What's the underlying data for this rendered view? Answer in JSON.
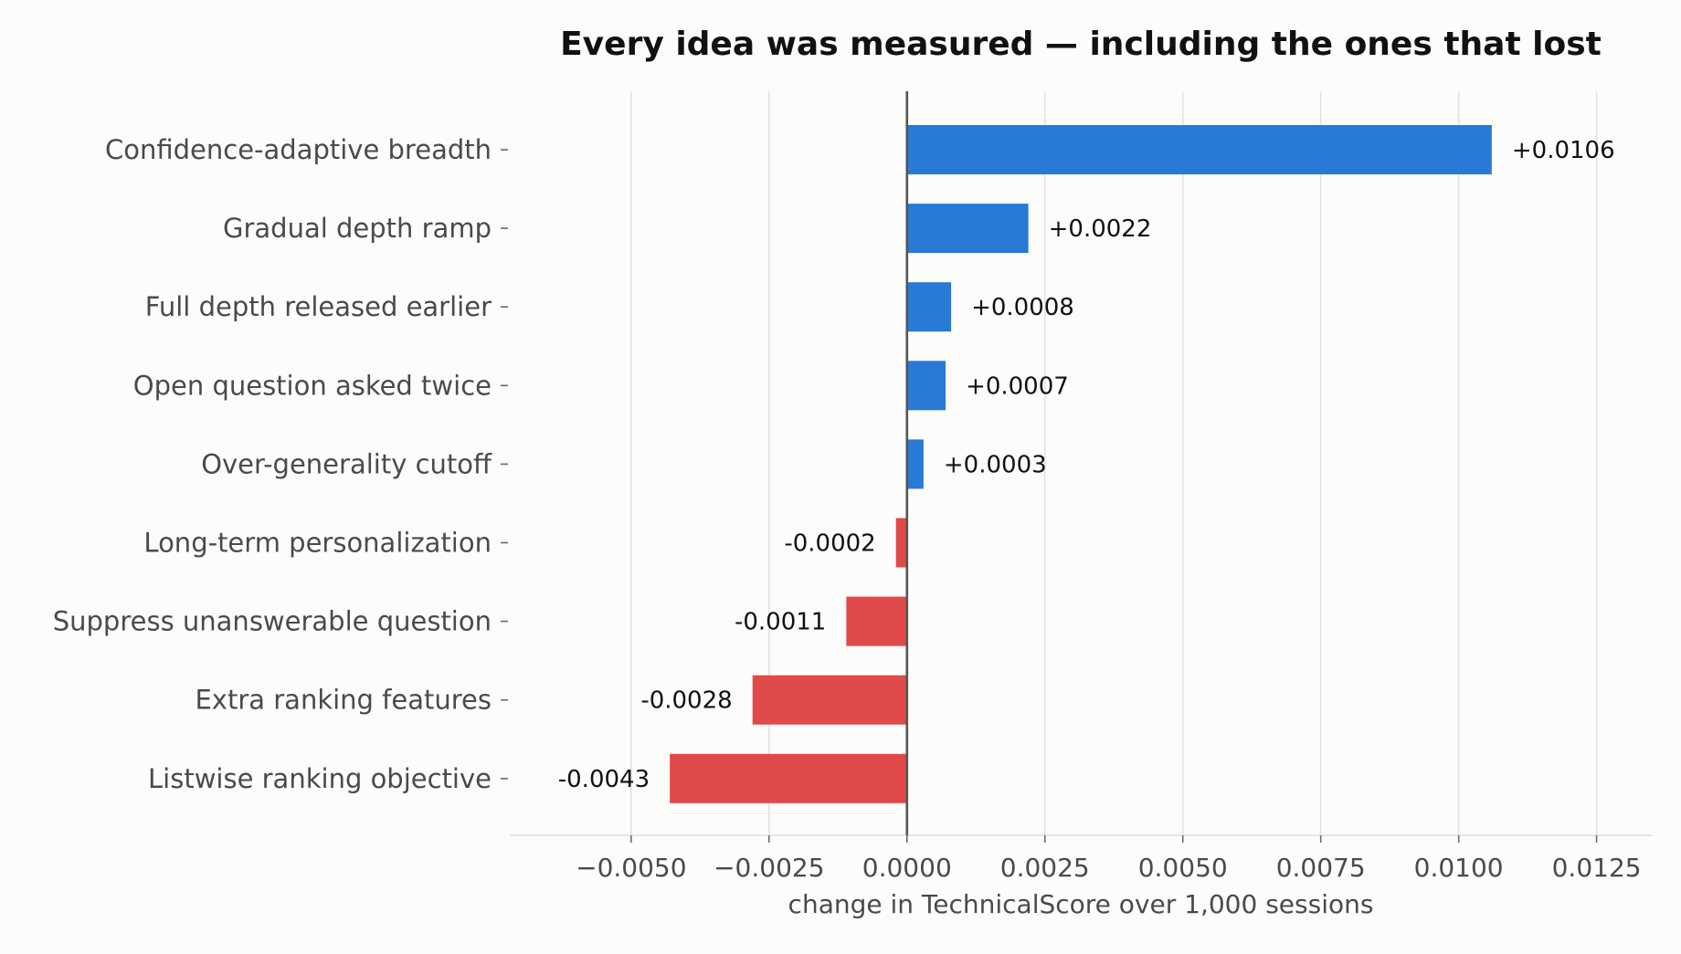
{
  "chart_data": {
    "type": "bar",
    "orientation": "horizontal",
    "title": "Every idea was measured — including the ones that lost",
    "xlabel": "change in TechnicalScore over 1,000 sessions",
    "ylabel": "",
    "xlim": [
      -0.0072,
      0.0135
    ],
    "grid": "vertical",
    "x_ticks": [
      -0.005,
      -0.0025,
      0.0,
      0.0025,
      0.005,
      0.0075,
      0.01,
      0.0125
    ],
    "x_tick_labels": [
      "−0.0050",
      "−0.0025",
      "0.0000",
      "0.0025",
      "0.0050",
      "0.0075",
      "0.0100",
      "0.0125"
    ],
    "categories": [
      "Confidence-adaptive breadth",
      "Gradual depth ramp",
      "Full depth released earlier",
      "Open question asked twice",
      "Over-generality cutoff",
      "Long-term personalization",
      "Suppress unanswerable question",
      "Extra ranking features",
      "Listwise ranking objective"
    ],
    "values": [
      0.0106,
      0.0022,
      0.0008,
      0.0007,
      0.0003,
      -0.0002,
      -0.0011,
      -0.0028,
      -0.0043
    ],
    "data_labels": [
      "+0.0106",
      "+0.0022",
      "+0.0008",
      "+0.0007",
      "+0.0003",
      "-0.0002",
      "-0.0011",
      "-0.0028",
      "-0.0043"
    ],
    "colors": {
      "positive": "#2979d6",
      "negative": "#e14a4a",
      "zero_line": "#555555",
      "grid": "#e2e2e2",
      "background": "#fcfcfa"
    }
  }
}
